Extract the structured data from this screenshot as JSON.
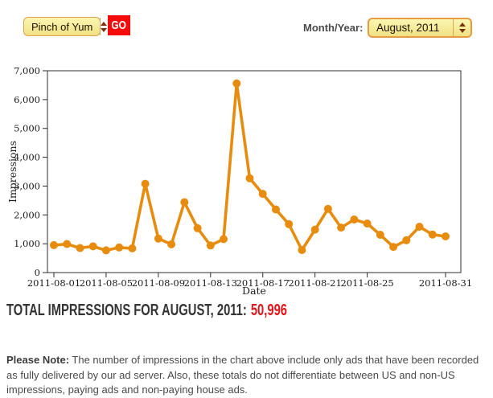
{
  "toolbar": {
    "site_select": {
      "value": "Pinch of Yum"
    },
    "go_label": "GO",
    "month_label": "Month/Year:",
    "month_select": {
      "value": "August, 2011"
    }
  },
  "chart_data": {
    "type": "line",
    "title": "",
    "xlabel": "Date",
    "ylabel": "Impressions",
    "x": [
      "2011-08-01",
      "2011-08-02",
      "2011-08-03",
      "2011-08-04",
      "2011-08-05",
      "2011-08-06",
      "2011-08-07",
      "2011-08-08",
      "2011-08-09",
      "2011-08-10",
      "2011-08-11",
      "2011-08-12",
      "2011-08-13",
      "2011-08-14",
      "2011-08-15",
      "2011-08-16",
      "2011-08-17",
      "2011-08-18",
      "2011-08-19",
      "2011-08-20",
      "2011-08-21",
      "2011-08-22",
      "2011-08-23",
      "2011-08-24",
      "2011-08-25",
      "2011-08-26",
      "2011-08-27",
      "2011-08-28",
      "2011-08-29",
      "2011-08-30",
      "2011-08-31"
    ],
    "values": [
      950,
      990,
      850,
      910,
      770,
      870,
      840,
      3080,
      1180,
      980,
      2440,
      1540,
      940,
      1160,
      6560,
      3270,
      2730,
      2190,
      1680,
      780,
      1490,
      2210,
      1560,
      1840,
      1700,
      1310,
      890,
      1120,
      1590,
      1320,
      1256
    ],
    "ylim": [
      0,
      7000
    ],
    "ytick_step": 1000,
    "xtick_labels": [
      "2011-08-01",
      "2011-08-05",
      "2011-08-09",
      "2011-08-13",
      "2011-08-17",
      "2011-08-21",
      "2011-08-25",
      "2011-08-31"
    ],
    "grid": false,
    "legend": "none",
    "line_color": "#E78C0E",
    "axis_color": "#2E2E2E"
  },
  "summary": {
    "label": "TOTAL IMPRESSIONS FOR AUGUST, 2011:",
    "value": "50,996",
    "value_color": "#E4151B"
  },
  "note": {
    "bold": "Please Note:",
    "text": " The number of impressions in the chart above include only ads that have been recorded as fully delivered by our ad server. Also, these totals do not differentiate between US and non-US impressions, paying ads and non-paying house ads."
  },
  "colors": {
    "go_button": "#F60B0B",
    "select_border": "#E89A43",
    "select_fill_top": "#FBF7B2",
    "select_fill_bottom": "#F0E183",
    "stepper_arrow": "#7A2E0B"
  }
}
